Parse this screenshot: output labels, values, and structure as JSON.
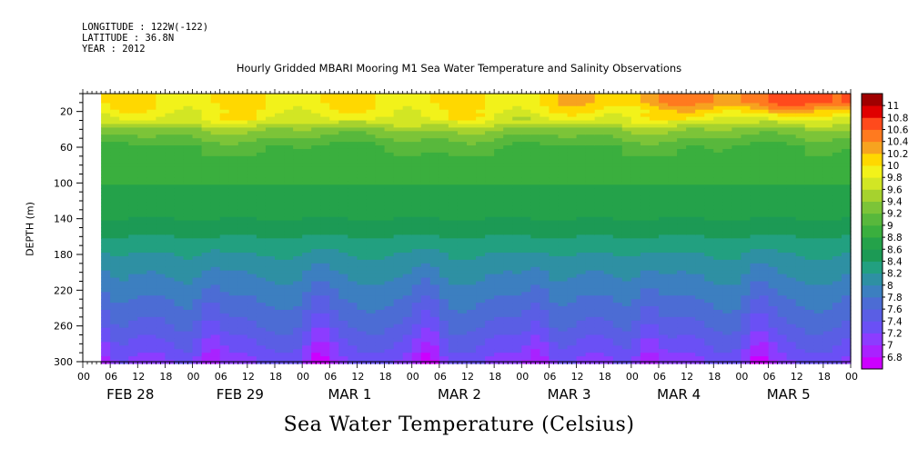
{
  "header": {
    "longitude": "LONGITUDE : 122W(-122)",
    "latitude": "LATITUDE : 36.8N",
    "year": "YEAR : 2012"
  },
  "chart_data": {
    "type": "heatmap",
    "title": "Hourly Gridded MBARI Mooring M1 Sea Water Temperature and Salinity Observations",
    "ylabel": "DEPTH (m)",
    "xlabel": "Sea Water Temperature (Celsius)",
    "y_axis": {
      "ylim": [
        300,
        0
      ],
      "ticks": [
        20,
        60,
        100,
        140,
        180,
        220,
        260,
        300
      ],
      "inverted": true
    },
    "x_axis": {
      "hour_ticks": [
        "00",
        "06",
        "12",
        "18",
        "00",
        "06",
        "12",
        "18",
        "00",
        "06",
        "12",
        "18",
        "00",
        "06",
        "12",
        "18",
        "00",
        "06",
        "12",
        "18",
        "00",
        "06",
        "12",
        "18",
        "00",
        "06",
        "12",
        "18",
        "00",
        "06",
        "12",
        "18"
      ],
      "day_labels": [
        "FEB 28",
        "FEB 29",
        "MAR  1",
        "MAR  2",
        "MAR  3",
        "MAR  4",
        "MAR  5"
      ]
    },
    "data_start_hour": 4,
    "colorbar": {
      "levels": [
        6.8,
        7,
        7.2,
        7.4,
        7.6,
        7.8,
        8,
        8.2,
        8.4,
        8.6,
        8.8,
        9,
        9.2,
        9.4,
        9.6,
        9.8,
        10,
        10.2,
        10.4,
        10.6,
        10.8,
        11
      ],
      "labels": [
        "6.8",
        "7",
        "7.2",
        "7.4",
        "7.6",
        "7.8",
        "8",
        "8.2",
        "8.4",
        "8.6",
        "8.8",
        "9",
        "9.2",
        "9.4",
        "9.6",
        "9.8",
        "10",
        "10.2",
        "10.4",
        "10.6",
        "10.8",
        "11"
      ],
      "colors": [
        "#cc00ff",
        "#a922ff",
        "#8c3cff",
        "#6a50f5",
        "#5a5ee4",
        "#4c6cd4",
        "#3c7fc0",
        "#2e90a3",
        "#22a080",
        "#1c9a55",
        "#24a24a",
        "#3aaf3e",
        "#58b83c",
        "#7cc438",
        "#a6d22e",
        "#d2e624",
        "#f2f21a",
        "#ffd800",
        "#f7a31f",
        "#ff7a1f",
        "#ff4a1c",
        "#e00000",
        "#a00000"
      ]
    },
    "depth_profile_representative": {
      "depth_m": [
        10,
        20,
        30,
        40,
        60,
        100,
        140,
        180,
        220,
        260,
        300
      ],
      "temp_c": [
        10.0,
        9.9,
        9.8,
        9.4,
        9.0,
        8.8,
        8.6,
        8.2,
        7.9,
        7.6,
        7.2
      ]
    }
  }
}
